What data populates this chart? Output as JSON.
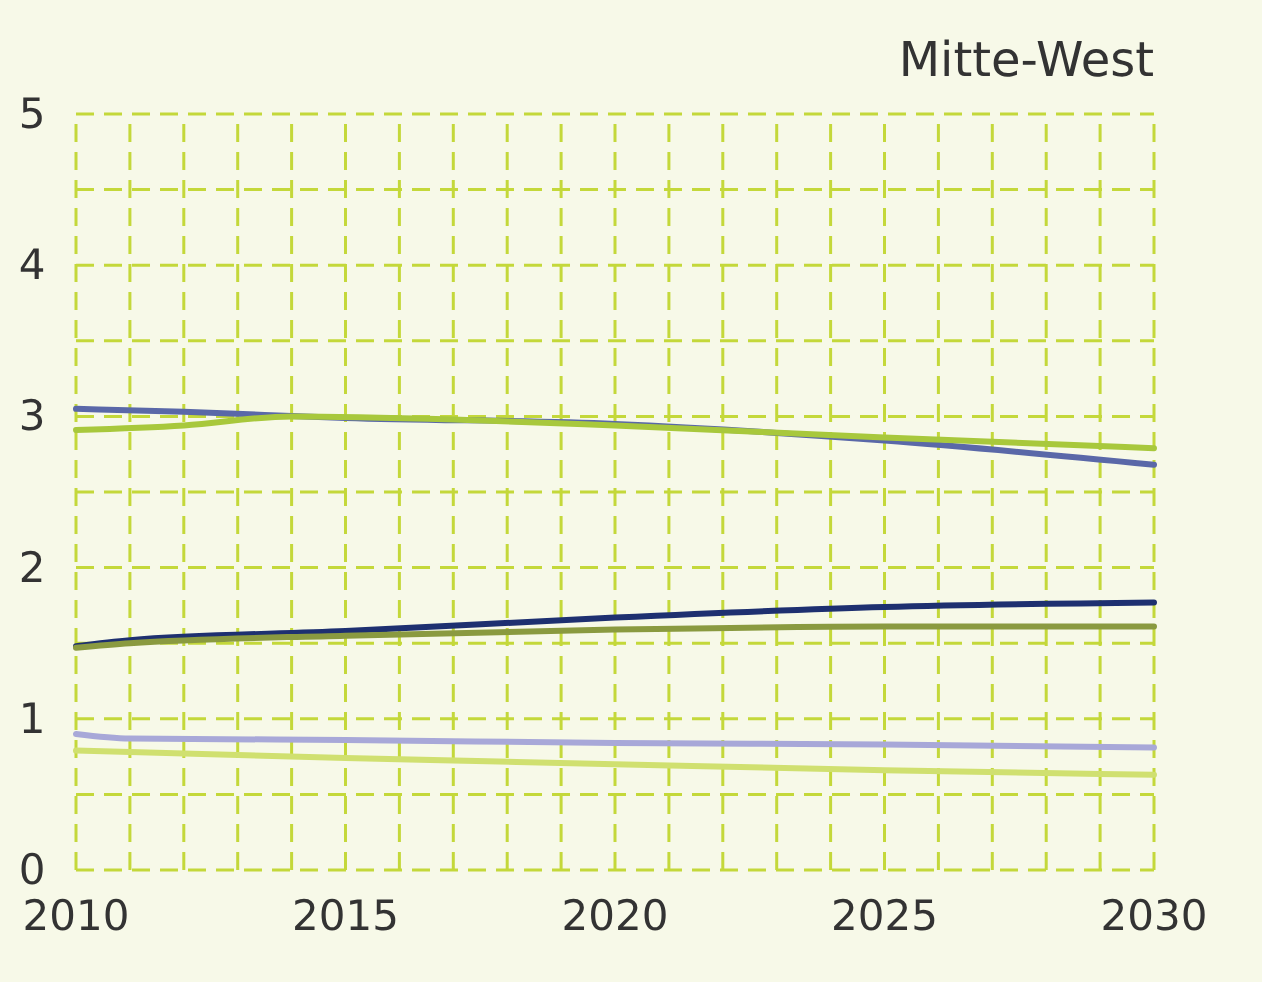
{
  "chart_data": {
    "type": "line",
    "title": "Mitte-West",
    "xlim": [
      2010,
      2030
    ],
    "ylim": [
      0,
      5
    ],
    "xticks": [
      2010,
      {
        "value": 2011,
        "label": null
      },
      {
        "value": 2012,
        "label": null
      },
      {
        "value": 2013,
        "label": null
      },
      {
        "value": 2014,
        "label": null
      },
      2015,
      {
        "value": 2016,
        "label": null
      },
      {
        "value": 2017,
        "label": null
      },
      {
        "value": 2018,
        "label": null
      },
      {
        "value": 2019,
        "label": null
      },
      2020,
      {
        "value": 2021,
        "label": null
      },
      {
        "value": 2022,
        "label": null
      },
      {
        "value": 2023,
        "label": null
      },
      {
        "value": 2024,
        "label": null
      },
      2025,
      {
        "value": 2026,
        "label": null
      },
      {
        "value": 2027,
        "label": null
      },
      {
        "value": 2028,
        "label": null
      },
      {
        "value": 2029,
        "label": null
      },
      2030
    ],
    "yticks": [
      0,
      {
        "value": 0.5,
        "label": null
      },
      1,
      {
        "value": 1.5,
        "label": null
      },
      2,
      {
        "value": 2.5,
        "label": null
      },
      3,
      {
        "value": 3.5,
        "label": null
      },
      4,
      {
        "value": 4.5,
        "label": null
      },
      5
    ],
    "grid": true,
    "marker": "none",
    "line_style": "solid",
    "series": [
      {
        "color": "#5a68a8",
        "x": [
          2010,
          2012,
          2015,
          2020,
          2025,
          2030
        ],
        "values": [
          3.05,
          3.03,
          2.99,
          2.95,
          2.84,
          2.68
        ]
      },
      {
        "color": "#a8c83c",
        "x": [
          2010,
          2012,
          2014,
          2017,
          2020,
          2025,
          2030
        ],
        "values": [
          2.91,
          2.94,
          3.0,
          2.98,
          2.94,
          2.86,
          2.79
        ]
      },
      {
        "color": "#1e3070",
        "x": [
          2010,
          2011,
          2015,
          2020,
          2025,
          2030
        ],
        "values": [
          1.48,
          1.52,
          1.58,
          1.67,
          1.74,
          1.77
        ]
      },
      {
        "color": "#8a9a40",
        "x": [
          2010,
          2011,
          2015,
          2020,
          2025,
          2030
        ],
        "values": [
          1.47,
          1.5,
          1.55,
          1.59,
          1.61,
          1.61
        ]
      },
      {
        "color": "#a8a8d8",
        "x": [
          2010,
          2011,
          2015,
          2020,
          2025,
          2030
        ],
        "values": [
          0.9,
          0.87,
          0.86,
          0.84,
          0.83,
          0.81
        ]
      },
      {
        "color": "#d0e070",
        "x": [
          2010,
          2015,
          2020,
          2025,
          2030
        ],
        "values": [
          0.79,
          0.74,
          0.7,
          0.66,
          0.63
        ]
      }
    ]
  }
}
